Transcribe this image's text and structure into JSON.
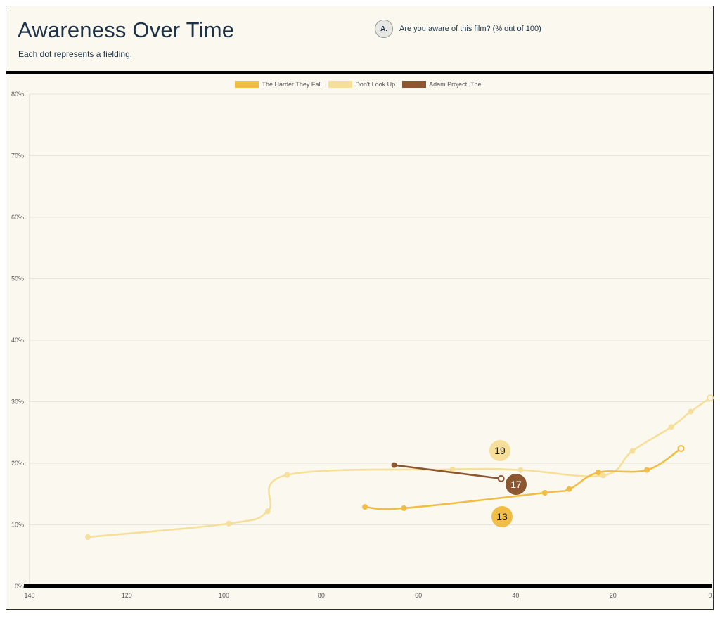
{
  "header": {
    "title": "Awareness Over Time",
    "subtitle": "Each dot represents a fielding.",
    "question_badge": "A.",
    "question_text": "Are you aware of this film? (% out of 100)"
  },
  "chart_data": {
    "type": "line",
    "title": "Awareness Over Time",
    "xlabel": "",
    "ylabel": "",
    "x_reversed": true,
    "xlim": [
      140,
      0
    ],
    "ylim": [
      0,
      80
    ],
    "x_ticks": [
      140,
      120,
      100,
      80,
      60,
      40,
      20,
      0
    ],
    "y_ticks": [
      0,
      10,
      20,
      30,
      40,
      50,
      60,
      70,
      80
    ],
    "y_tick_labels": [
      "0%",
      "10%",
      "20%",
      "30%",
      "40%",
      "50%",
      "60%",
      "70%",
      "80%"
    ],
    "grid": "horizontal",
    "legend_position": "top-center",
    "series": [
      {
        "name": "The Harder They Fall",
        "color": "#f0bd46",
        "end_label": "13",
        "points": [
          [
            71,
            12.9
          ],
          [
            63,
            12.7
          ],
          [
            34,
            15.2
          ],
          [
            29,
            15.8
          ],
          [
            23,
            18.5
          ],
          [
            13,
            18.9
          ],
          [
            6,
            22.4
          ]
        ]
      },
      {
        "name": "Don't Look Up",
        "color": "#f6df9a",
        "end_label": "19",
        "points": [
          [
            128,
            8.0
          ],
          [
            99,
            10.2
          ],
          [
            91,
            12.2
          ],
          [
            87,
            18.1
          ],
          [
            53,
            19.0
          ],
          [
            39,
            18.9
          ],
          [
            22,
            18.0
          ],
          [
            16,
            22.0
          ],
          [
            8,
            25.9
          ],
          [
            4,
            28.4
          ],
          [
            0,
            30.6
          ]
        ]
      },
      {
        "name": "Adam Project, The",
        "color": "#8c5631",
        "end_label": "17",
        "points": [
          [
            65,
            19.7
          ],
          [
            43,
            17.5
          ]
        ]
      }
    ]
  }
}
